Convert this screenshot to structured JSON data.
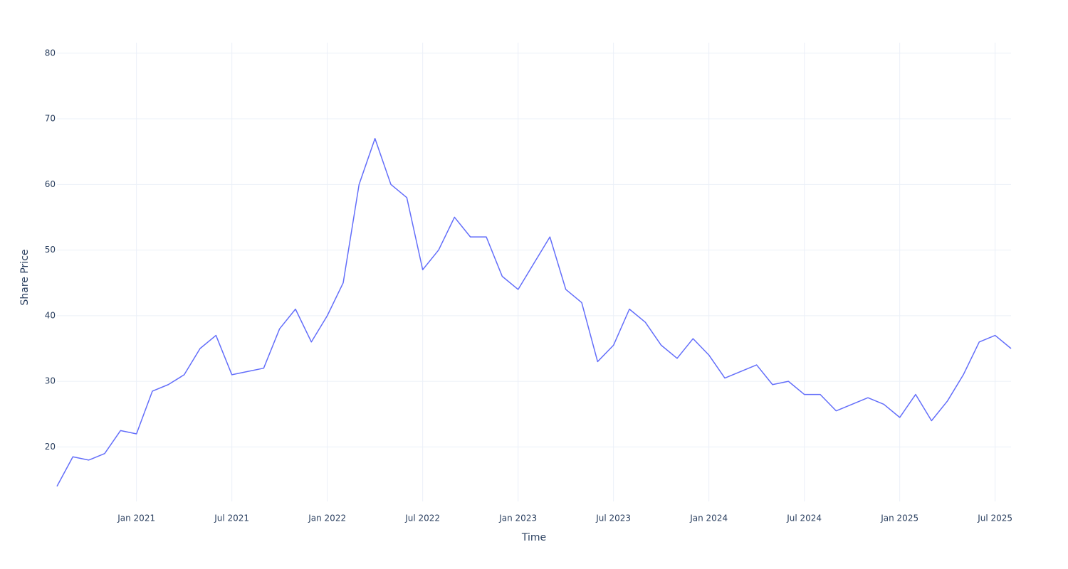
{
  "chart_data": {
    "type": "line",
    "xlabel": "Time",
    "ylabel": "Share Price",
    "x": [
      "2020-08",
      "2020-09",
      "2020-10",
      "2020-11",
      "2020-12",
      "2021-01",
      "2021-02",
      "2021-03",
      "2021-04",
      "2021-05",
      "2021-06",
      "2021-07",
      "2021-08",
      "2021-09",
      "2021-10",
      "2021-11",
      "2021-12",
      "2022-01",
      "2022-02",
      "2022-03",
      "2022-04",
      "2022-05",
      "2022-06",
      "2022-07",
      "2022-08",
      "2022-09",
      "2022-10",
      "2022-11",
      "2022-12",
      "2023-01",
      "2023-02",
      "2023-03",
      "2023-04",
      "2023-05",
      "2023-06",
      "2023-07",
      "2023-08",
      "2023-09",
      "2023-10",
      "2023-11",
      "2023-12",
      "2024-01",
      "2024-02",
      "2024-03",
      "2024-04",
      "2024-05",
      "2024-06",
      "2024-07",
      "2024-08",
      "2024-09",
      "2024-10",
      "2024-11",
      "2024-12",
      "2025-01",
      "2025-02",
      "2025-03",
      "2025-04",
      "2025-05",
      "2025-06",
      "2025-07",
      "2025-08"
    ],
    "series": [
      {
        "name": "Share Price",
        "color": "#636efa",
        "values": [
          14,
          18.5,
          18,
          19,
          22.5,
          22,
          28.5,
          29.5,
          31,
          35,
          37,
          31,
          31.5,
          32,
          38,
          41,
          36,
          40,
          45,
          60,
          67,
          60,
          58,
          47,
          50,
          55,
          52,
          52,
          46,
          44,
          48,
          52,
          44,
          42,
          33,
          35.5,
          41,
          39,
          35.5,
          33.5,
          36.5,
          34,
          30.5,
          31.5,
          32.5,
          29.5,
          30,
          28,
          28,
          25.5,
          26.5,
          27.5,
          26.5,
          24.5,
          28,
          24,
          27,
          31,
          36,
          37,
          35
        ]
      }
    ],
    "xlim": [
      "2020-08",
      "2025-08"
    ],
    "xticks": [
      {
        "value": "2021-01",
        "label": "Jan 2021"
      },
      {
        "value": "2021-07",
        "label": "Jul 2021"
      },
      {
        "value": "2022-01",
        "label": "Jan 2022"
      },
      {
        "value": "2022-07",
        "label": "Jul 2022"
      },
      {
        "value": "2023-01",
        "label": "Jan 2023"
      },
      {
        "value": "2023-07",
        "label": "Jul 2023"
      },
      {
        "value": "2024-01",
        "label": "Jan 2024"
      },
      {
        "value": "2024-07",
        "label": "Jul 2024"
      },
      {
        "value": "2025-01",
        "label": "Jan 2025"
      },
      {
        "value": "2025-07",
        "label": "Jul 2025"
      }
    ],
    "ylim": [
      11.7,
      81.6
    ],
    "yticks": [
      20,
      30,
      40,
      50,
      60,
      70,
      80
    ],
    "grid": true
  }
}
